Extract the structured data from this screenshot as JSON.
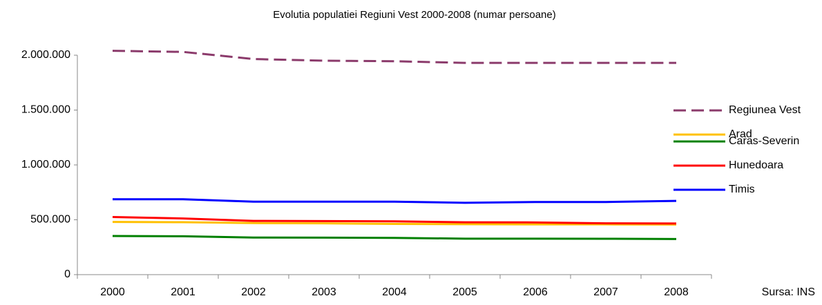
{
  "chart_data": {
    "type": "line",
    "title": "Evolutia populatiei Regiuni Vest 2000-2008 (numar persoane)",
    "source": "Sursa: INS",
    "categories": [
      "2000",
      "2001",
      "2002",
      "2003",
      "2004",
      "2005",
      "2006",
      "2007",
      "2008"
    ],
    "series": [
      {
        "name": "Regiunea Vest",
        "color": "#8b3a6b",
        "dashed": true,
        "values": [
          2040000,
          2030000,
          1965000,
          1950000,
          1945000,
          1930000,
          1930000,
          1930000,
          1930000
        ]
      },
      {
        "name": "Arad",
        "color": "#ffc000",
        "values": [
          480000,
          478000,
          470000,
          468000,
          462000,
          460000,
          458000,
          458000,
          457000
        ]
      },
      {
        "name": "Caras-Severin",
        "color": "#008000",
        "values": [
          352000,
          350000,
          338000,
          337000,
          335000,
          328000,
          328000,
          327000,
          325000
        ]
      },
      {
        "name": "Hunedoara",
        "color": "#ff0000",
        "values": [
          525000,
          512000,
          490000,
          488000,
          486000,
          477000,
          476000,
          468000,
          466000
        ]
      },
      {
        "name": "Timis",
        "color": "#0000ff",
        "values": [
          687000,
          687000,
          665000,
          665000,
          665000,
          655000,
          662000,
          662000,
          672000
        ]
      }
    ],
    "ylim": [
      0,
      2000000
    ],
    "yticks": [
      {
        "value": 0,
        "label": "0"
      },
      {
        "value": 500000,
        "label": "500.000"
      },
      {
        "value": 1000000,
        "label": "1.000.000"
      },
      {
        "value": 1500000,
        "label": "1.500.000"
      },
      {
        "value": 2000000,
        "label": "2.000.000"
      }
    ],
    "grid": false,
    "legend": "right"
  }
}
